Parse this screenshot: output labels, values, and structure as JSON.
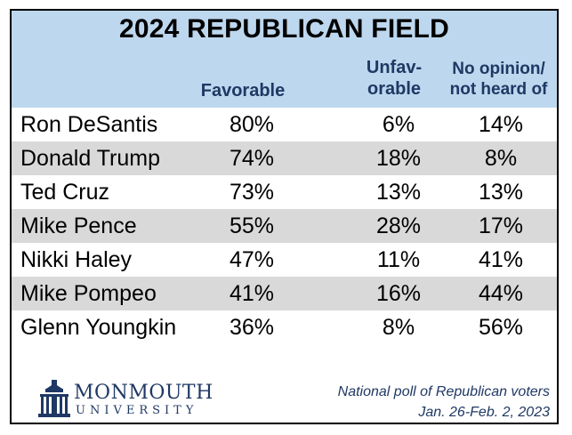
{
  "chart_data": {
    "type": "table",
    "title": "2024 REPUBLICAN FIELD",
    "columns": {
      "favorable": "Favorable",
      "unfavorable": [
        "Unfav-",
        "orable"
      ],
      "no_opinion": [
        "No opinion/",
        "not heard of"
      ]
    },
    "rows": [
      {
        "name": "Ron DeSantis",
        "favorable": "80%",
        "unfavorable": "6%",
        "no_opinion": "14%"
      },
      {
        "name": "Donald Trump",
        "favorable": "74%",
        "unfavorable": "18%",
        "no_opinion": "8%"
      },
      {
        "name": "Ted Cruz",
        "favorable": "73%",
        "unfavorable": "13%",
        "no_opinion": "13%"
      },
      {
        "name": "Mike Pence",
        "favorable": "55%",
        "unfavorable": "28%",
        "no_opinion": "17%"
      },
      {
        "name": "Nikki Haley",
        "favorable": "47%",
        "unfavorable": "11%",
        "no_opinion": "41%"
      },
      {
        "name": "Mike Pompeo",
        "favorable": "41%",
        "unfavorable": "16%",
        "no_opinion": "44%"
      },
      {
        "name": "Glenn Youngkin",
        "favorable": "36%",
        "unfavorable": "8%",
        "no_opinion": "56%"
      }
    ]
  },
  "footer": {
    "logo_name": "MONMOUTH",
    "logo_sub": "UNIVERSITY",
    "note_line1": "National poll of Republican voters",
    "note_line2": "Jan. 26-Feb. 2, 2023"
  },
  "colors": {
    "header_bg": "#bdd7ee",
    "row_shade": "#d9d9d9",
    "accent": "#1f3864",
    "logo_icon": "building-icon"
  }
}
